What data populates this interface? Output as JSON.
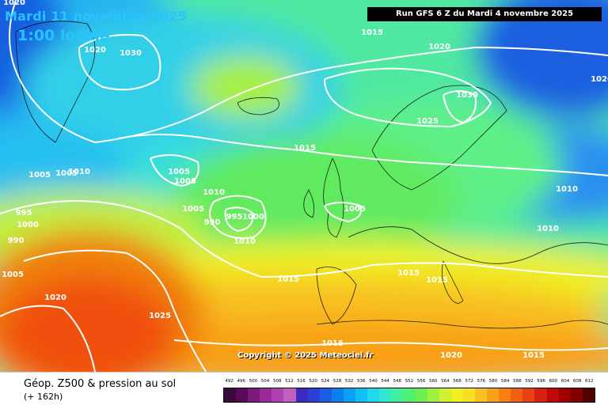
{
  "map": {
    "date_label": "Mardi 11 novembre 2025",
    "time_label": "1:00 locale",
    "run_label": "Run GFS 6 Z du Mardi 4 novembre 2025",
    "copyright": "Copyright © 2025 Meteociel.fr",
    "isobar_labels": [
      "1020",
      "1020",
      "1030",
      "1015",
      "1020",
      "1020",
      "1030",
      "1025",
      "1015",
      "1005",
      "1005",
      "1010",
      "1005",
      "1005",
      "1010",
      "1005",
      "990",
      "995",
      "1000",
      "1010",
      "1005",
      "990",
      "995",
      "1000",
      "1005",
      "1015",
      "1015",
      "1015",
      "1010",
      "1010",
      "1020",
      "1025",
      "1015",
      "1020",
      "1015"
    ]
  },
  "footer": {
    "caption": "Géop. Z500 & pression au sol",
    "step": "(+ 162h)"
  },
  "scale": {
    "values": [
      "492",
      "496",
      "500",
      "504",
      "508",
      "512",
      "516",
      "520",
      "524",
      "528",
      "532",
      "536",
      "540",
      "544",
      "548",
      "552",
      "556",
      "560",
      "564",
      "568",
      "572",
      "576",
      "580",
      "584",
      "588",
      "592",
      "596",
      "600",
      "604",
      "608",
      "612"
    ],
    "colors": [
      "#3a0a3a",
      "#5a0a5a",
      "#7a1a7a",
      "#9a2a9a",
      "#b040b0",
      "#c060c0",
      "#3b2bbf",
      "#2a40d8",
      "#1a5ee8",
      "#0a80f0",
      "#0aa0f5",
      "#10c0f5",
      "#20d8f0",
      "#30e8d0",
      "#40f0a0",
      "#50f070",
      "#70f050",
      "#a0f040",
      "#d0f030",
      "#f0f020",
      "#f8e020",
      "#f8c020",
      "#f8a018",
      "#f88010",
      "#f06010",
      "#e84010",
      "#d82010",
      "#c00808",
      "#a00000",
      "#800000",
      "#500000"
    ]
  }
}
